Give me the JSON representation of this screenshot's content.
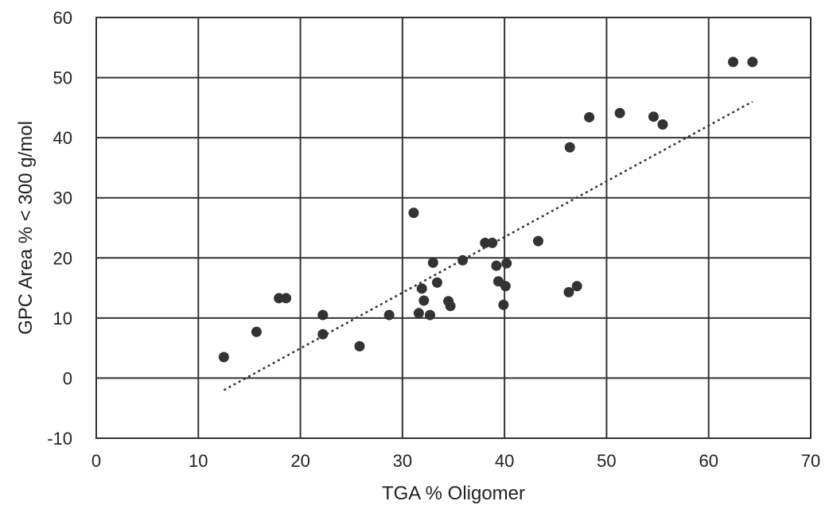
{
  "chart_data": {
    "type": "scatter",
    "xlabel": "TGA % Oligomer",
    "ylabel": "GPC Area % < 300 g/mol",
    "xlim": [
      0,
      70
    ],
    "ylim": [
      -10,
      60
    ],
    "xticks": [
      "0",
      "10",
      "20",
      "30",
      "40",
      "50",
      "60",
      "70"
    ],
    "yticks": [
      "-10",
      "0",
      "10",
      "20",
      "30",
      "40",
      "50",
      "60"
    ],
    "grid": true,
    "marker_color": "#333333",
    "trendline": {
      "style": "dotted",
      "x": [
        12.5,
        64.3
      ],
      "y": [
        -2,
        46
      ]
    },
    "points": [
      [
        12.5,
        3.5
      ],
      [
        15.7,
        7.7
      ],
      [
        17.9,
        13.3
      ],
      [
        18.6,
        13.3
      ],
      [
        22.2,
        10.5
      ],
      [
        22.2,
        7.3
      ],
      [
        25.8,
        5.3
      ],
      [
        28.7,
        10.5
      ],
      [
        31.1,
        27.5
      ],
      [
        31.6,
        10.8
      ],
      [
        31.9,
        14.9
      ],
      [
        32.1,
        12.9
      ],
      [
        32.7,
        10.5
      ],
      [
        33.0,
        19.2
      ],
      [
        33.4,
        15.9
      ],
      [
        34.5,
        12.8
      ],
      [
        34.7,
        12.0
      ],
      [
        35.9,
        19.6
      ],
      [
        38.1,
        22.5
      ],
      [
        38.8,
        22.5
      ],
      [
        39.2,
        18.7
      ],
      [
        39.4,
        16.1
      ],
      [
        39.9,
        12.2
      ],
      [
        40.1,
        15.3
      ],
      [
        40.2,
        19.1
      ],
      [
        43.3,
        22.8
      ],
      [
        46.3,
        14.3
      ],
      [
        46.4,
        38.4
      ],
      [
        47.1,
        15.3
      ],
      [
        48.3,
        43.4
      ],
      [
        51.3,
        44.1
      ],
      [
        54.6,
        43.5
      ],
      [
        55.5,
        42.2
      ],
      [
        62.4,
        52.6
      ],
      [
        64.3,
        52.6
      ]
    ]
  }
}
